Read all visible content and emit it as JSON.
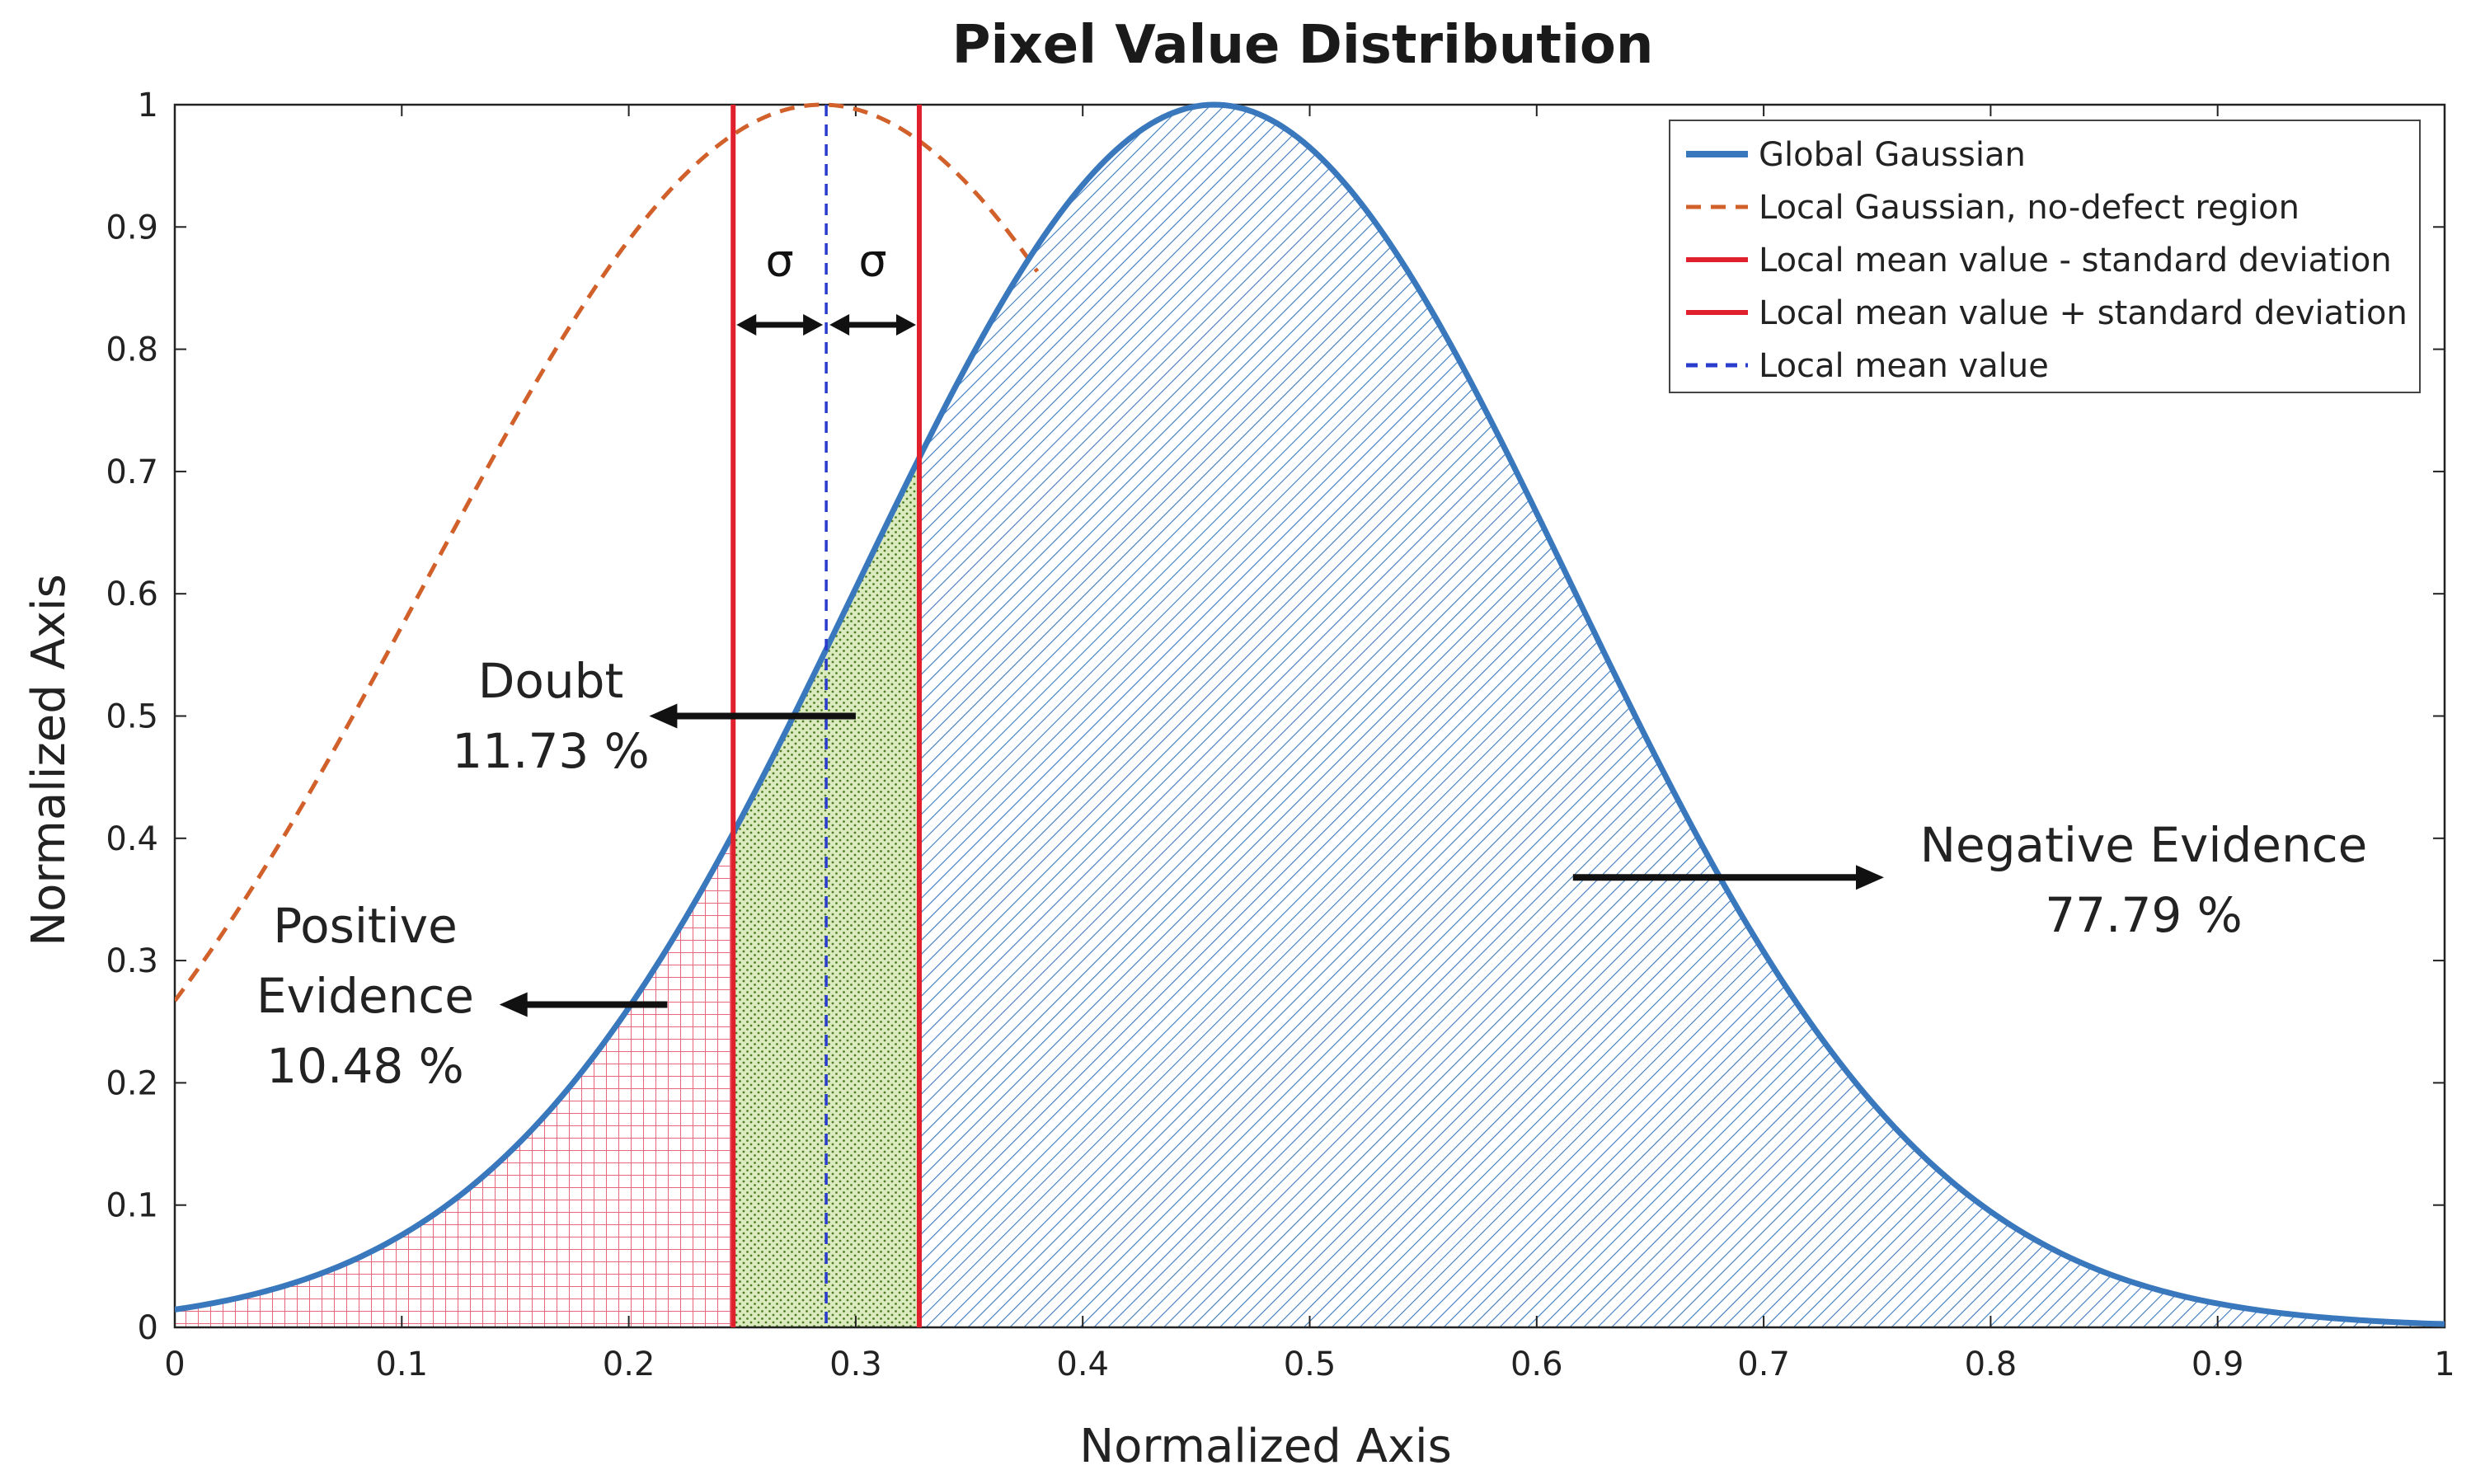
{
  "chart_data": {
    "type": "line",
    "title": "Pixel Value Distribution",
    "xlabel": "Normalized Axis",
    "ylabel": "Normalized Axis",
    "xlim": [
      0,
      1
    ],
    "ylim": [
      0,
      1
    ],
    "xticks": [
      0,
      0.1,
      0.2,
      0.3,
      0.4,
      0.5,
      0.6,
      0.7,
      0.8,
      0.9,
      1
    ],
    "yticks": [
      0,
      0.1,
      0.2,
      0.3,
      0.4,
      0.5,
      0.6,
      0.7,
      0.8,
      0.9,
      1
    ],
    "xtick_labels": [
      "0",
      "0.1",
      "0.2",
      "0.3",
      "0.4",
      "0.5",
      "0.6",
      "0.7",
      "0.8",
      "0.9",
      "1"
    ],
    "ytick_labels": [
      "0",
      "0.1",
      "0.2",
      "0.3",
      "0.4",
      "0.5",
      "0.6",
      "0.7",
      "0.8",
      "0.9",
      "1"
    ],
    "series": [
      {
        "name": "Global Gaussian",
        "mean": 0.458,
        "sigma": 0.1575,
        "peak": 1,
        "color": "#3a78bd",
        "style": "solid"
      },
      {
        "name": "Local Gaussian, no-defect region",
        "mean": 0.285,
        "sigma": 0.1754,
        "peak": 1,
        "color": "#d2602a",
        "style": "dashed"
      },
      {
        "name": "Local mean value - standard deviation",
        "x": 0.246,
        "color": "#e0202c",
        "style": "solid"
      },
      {
        "name": "Local mean value + standard deviation",
        "x": 0.328,
        "color": "#e0202c",
        "style": "solid"
      },
      {
        "name": "Local mean value",
        "x": 0.287,
        "color": "#2a3ccc",
        "style": "dashed"
      }
    ],
    "regions": [
      {
        "name": "Positive Evidence",
        "from": 0,
        "to": 0.246,
        "percent": 10.48,
        "pattern": "grid",
        "color": "#e8677a"
      },
      {
        "name": "Doubt",
        "from": 0.246,
        "to": 0.328,
        "percent": 11.73,
        "pattern": "dots",
        "color": "#5a8a2a"
      },
      {
        "name": "Negative Evidence",
        "from": 0.328,
        "to": 1,
        "percent": 77.79,
        "pattern": "hatch",
        "color": "#3a78bd"
      }
    ],
    "annotations": {
      "sigma": "σ",
      "doubt_title": "Doubt",
      "doubt_value": "11.73 %",
      "positive_line1": "Positive",
      "positive_line2": "Evidence",
      "positive_value": "10.48 %",
      "negative_title": "Negative Evidence",
      "negative_value": "77.79 %"
    },
    "legend": {
      "position": "top-right"
    },
    "grid": false
  }
}
